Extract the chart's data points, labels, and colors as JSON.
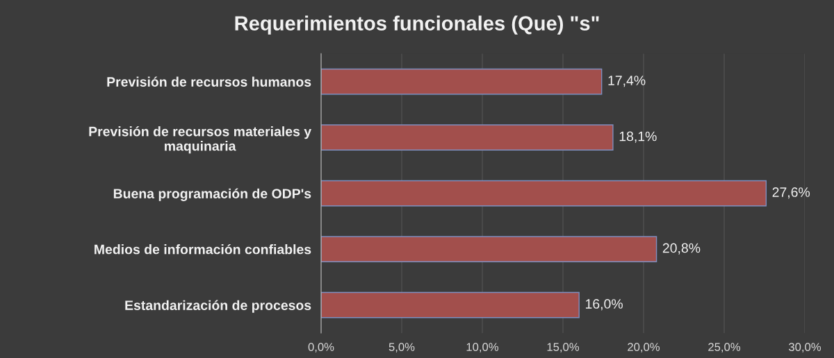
{
  "chart_data": {
    "type": "bar",
    "orientation": "horizontal",
    "title": "Requerimientos funcionales (Que) \"s\"",
    "categories": [
      "Previsión de recursos humanos",
      "Previsión de recursos materiales y\nmaquinaria",
      "Buena programación de ODP's",
      "Medios de información confiables",
      "Estandarización de procesos"
    ],
    "values": [
      17.4,
      18.1,
      27.6,
      20.8,
      16.0
    ],
    "value_labels": [
      "17,4%",
      "18,1%",
      "27,6%",
      "20,8%",
      "16,0%"
    ],
    "color": "#a24f4c",
    "xlim": [
      0,
      30
    ],
    "xticks": [
      {
        "value": 0,
        "label": "0,0%"
      },
      {
        "value": 5,
        "label": "5,0%"
      },
      {
        "value": 10,
        "label": "10,0%"
      },
      {
        "value": 15,
        "label": "15,0%"
      },
      {
        "value": 20,
        "label": "20,0%"
      },
      {
        "value": 25,
        "label": "25,0%"
      },
      {
        "value": 30,
        "label": "30,0%"
      }
    ],
    "grid": "x"
  }
}
